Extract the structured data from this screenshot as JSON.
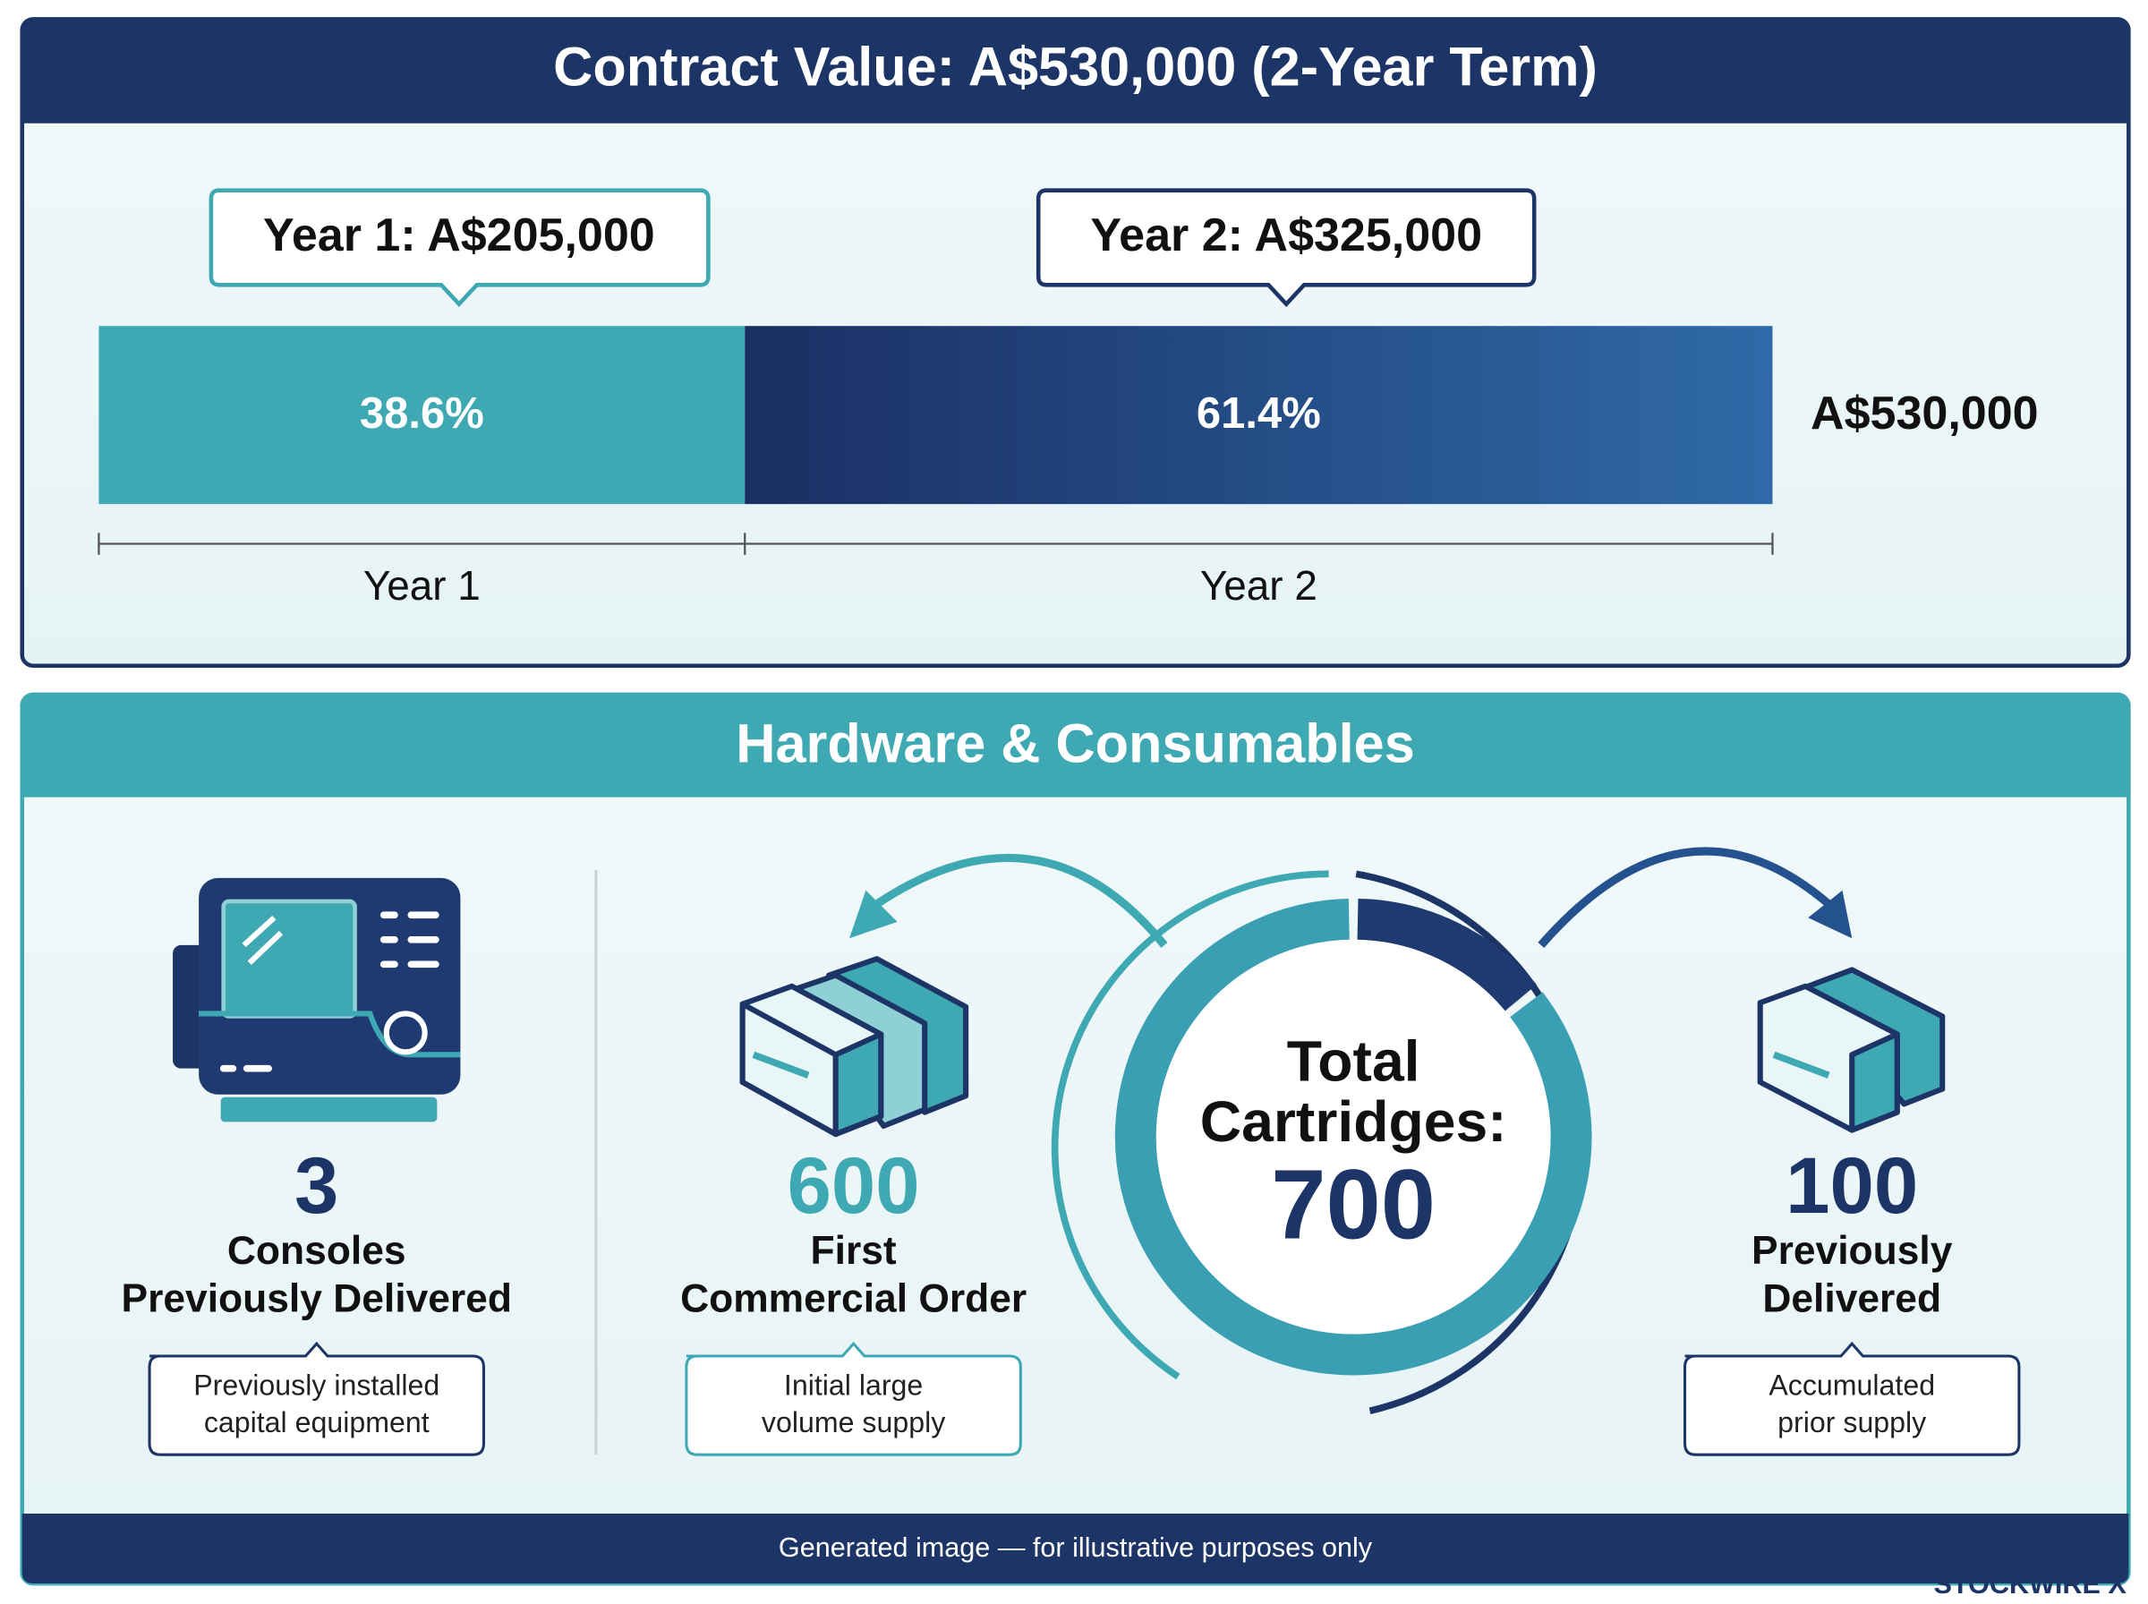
{
  "contract": {
    "title": "Contract Value: A$530,000 (2-Year Term)",
    "segments": [
      {
        "label": "Year 1",
        "callout": "Year 1: A$205,000",
        "value": 38.6,
        "value_label": "38.6%"
      },
      {
        "label": "Year 2",
        "callout": "Year 2: A$325,000",
        "value": 61.4,
        "value_label": "61.4%"
      }
    ],
    "total_label": "A$530,000"
  },
  "hardware": {
    "title": "Hardware & Consumables",
    "items": [
      {
        "number": 3,
        "title": [
          "Consoles",
          "Previously Delivered"
        ],
        "note": [
          "Previously installed",
          "capital equipment"
        ]
      },
      {
        "number": 600,
        "title": [
          "First",
          "Commercial Order"
        ],
        "note": [
          "Initial large",
          "volume supply"
        ]
      },
      {
        "number": 100,
        "title": [
          "Previously",
          "Delivered"
        ],
        "note": [
          "Accumulated",
          "prior supply"
        ]
      }
    ],
    "donut": {
      "label": [
        "Total",
        "Cartridges:"
      ],
      "total": 700
    }
  },
  "footer": "Generated image — for illustrative purposes only",
  "brand": "STOCKWIRE X"
}
